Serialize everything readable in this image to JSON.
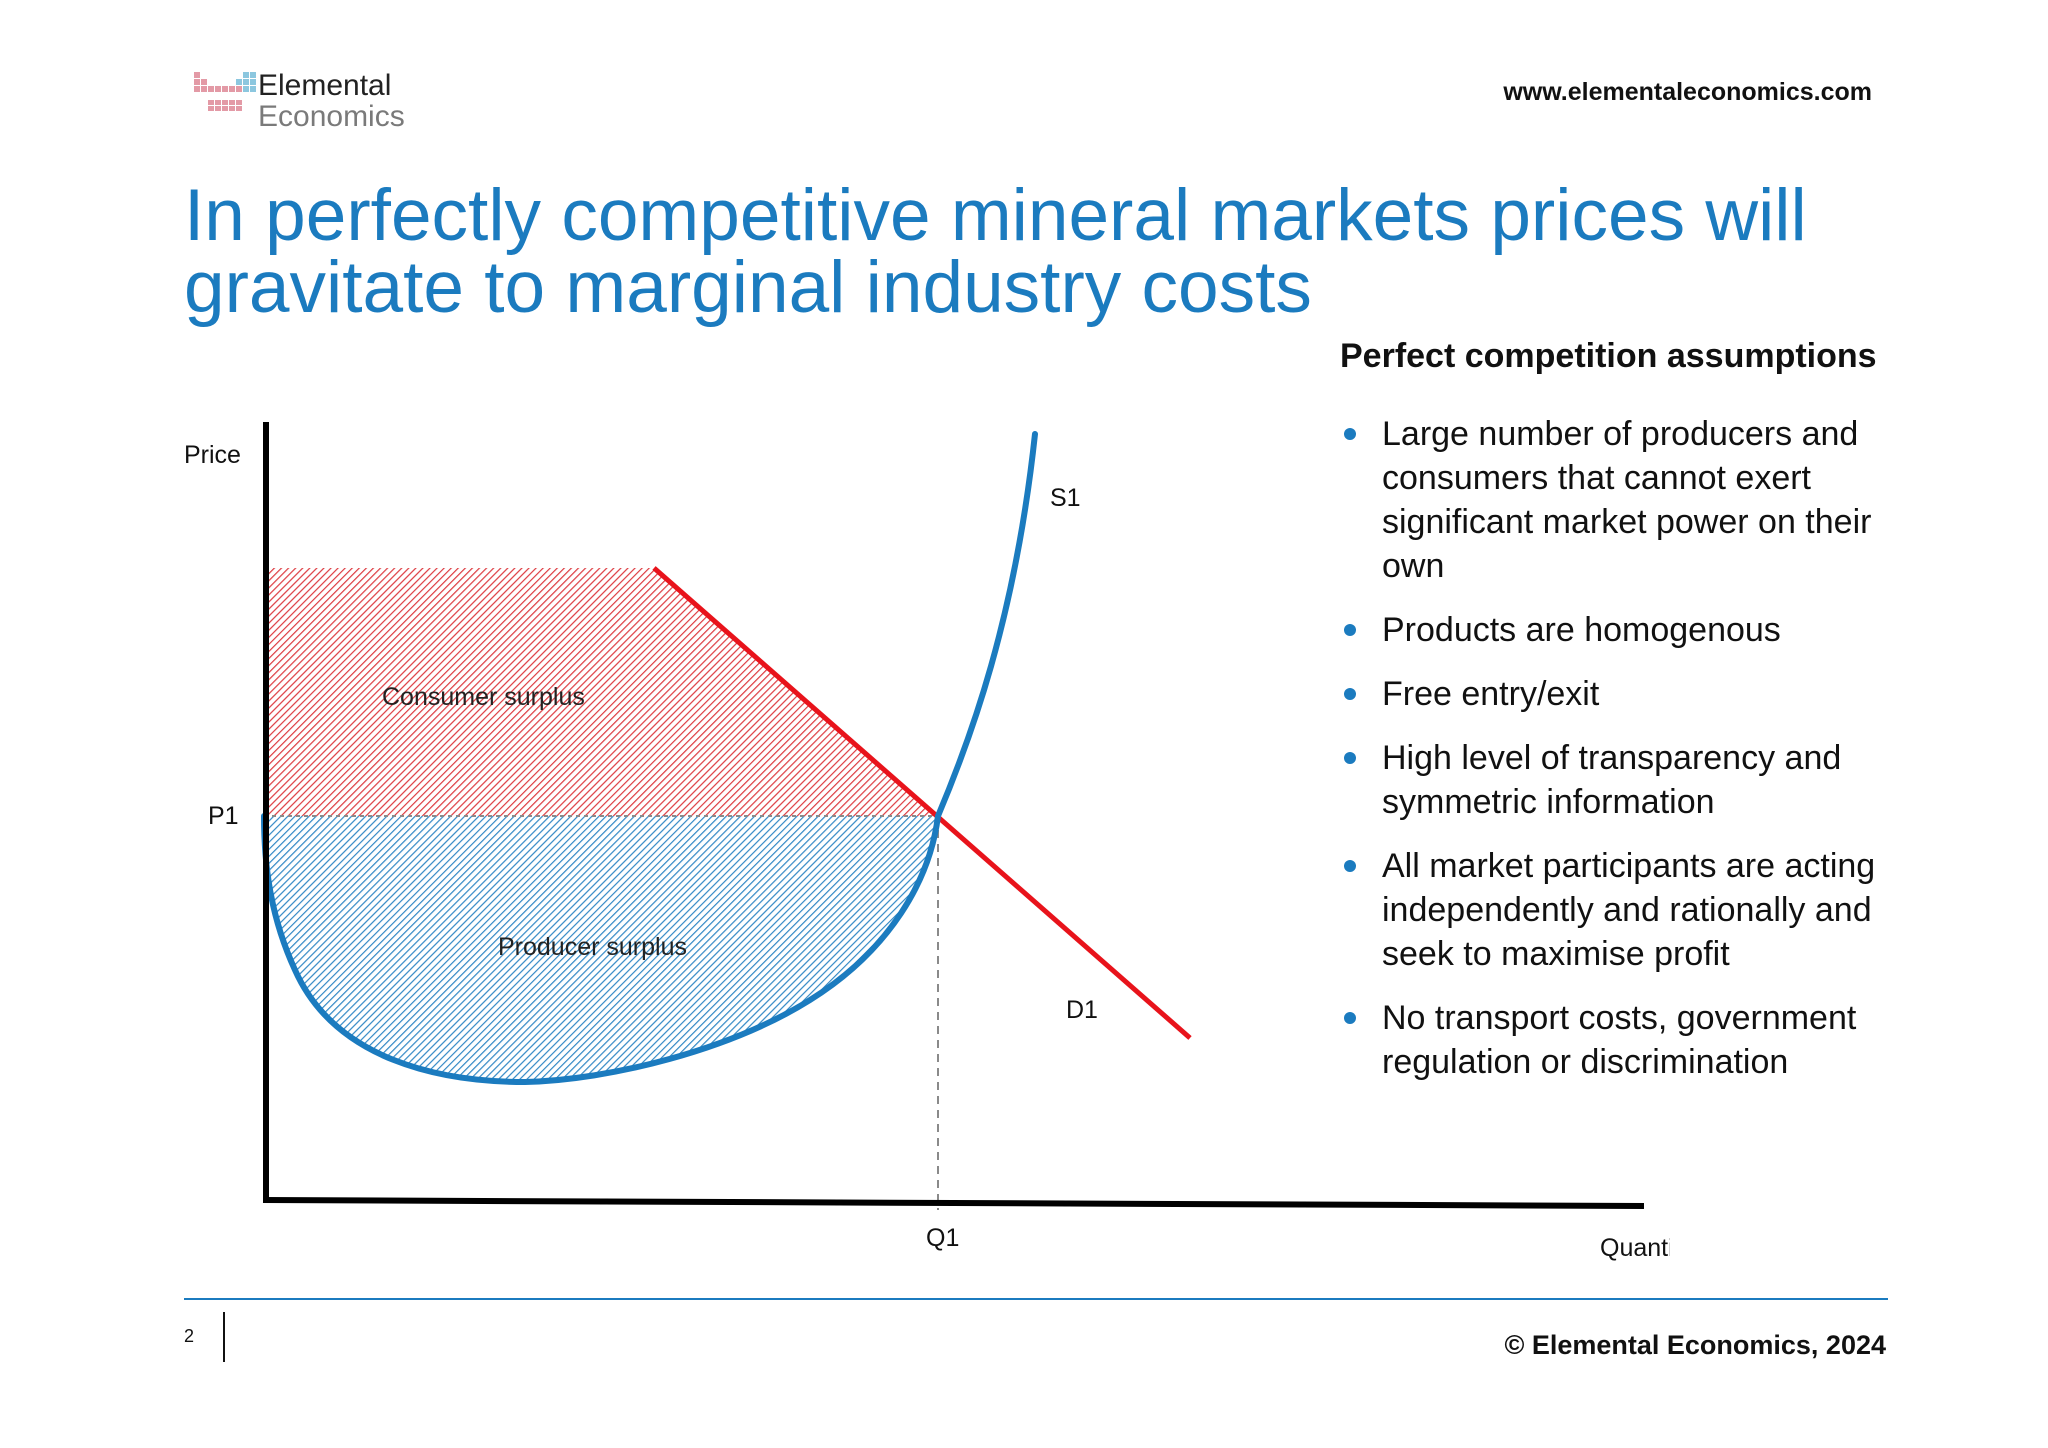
{
  "brand": {
    "logo_line1": "Elemental",
    "logo_line2": "Economics",
    "website": "www.elementaleconomics.com"
  },
  "title": "In perfectly competitive mineral markets prices will gravitate to marginal industry costs",
  "chart_data": {
    "type": "diagram",
    "y_axis_label": "Price",
    "x_axis_label": "Quantity",
    "price_marker": "P1",
    "quantity_marker": "Q1",
    "supply_label": "S1",
    "demand_label": "D1",
    "consumer_surplus_label": "Consumer surplus",
    "producer_surplus_label": "Producer surplus",
    "colors": {
      "supply_curve": "#1b7bbf",
      "demand_curve": "#e8131b",
      "consumer_surplus_hatch": "#d9252b",
      "producer_surplus_hatch": "#1b7bbf",
      "axes": "#000000"
    }
  },
  "panel": {
    "heading": "Perfect competition assumptions",
    "bullets": [
      "Large number of producers and consumers that cannot exert significant market power on their own",
      "Products are homogenous",
      "Free entry/exit",
      "High level of transparency and symmetric information",
      "All market participants are acting independently and rationally and seek to maximise profit",
      "No transport costs, government regulation or discrimination"
    ]
  },
  "footer": {
    "page_number": "2",
    "copyright": "© Elemental Economics, 2024"
  }
}
